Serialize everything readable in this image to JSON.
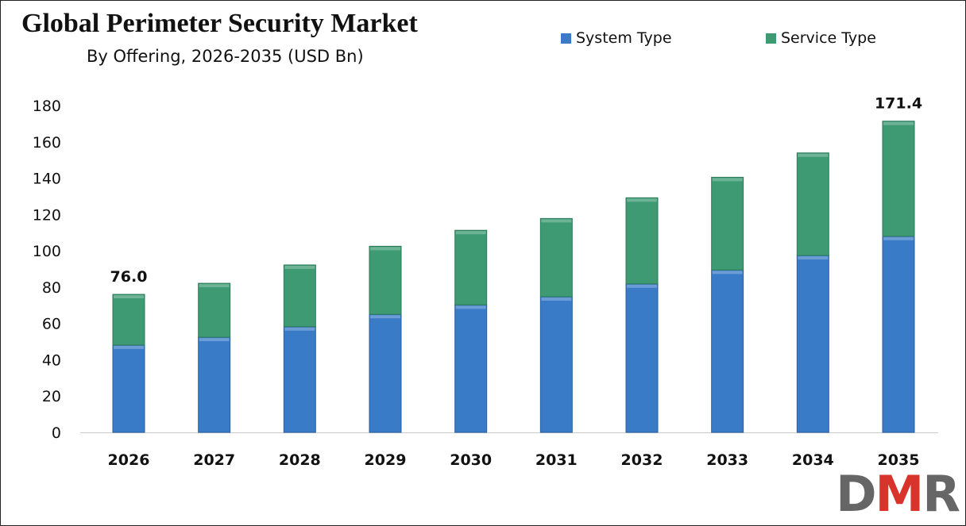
{
  "chart_data": {
    "type": "bar",
    "stacked": true,
    "title": "Global Perimeter Security Market",
    "subtitle": "By Offering, 2026-2035 (USD Bn)",
    "categories": [
      "2026",
      "2027",
      "2028",
      "2029",
      "2030",
      "2031",
      "2032",
      "2033",
      "2034",
      "2035"
    ],
    "series": [
      {
        "name": "System Type",
        "color": "#3a7bc8",
        "values": [
          48.1,
          52.4,
          58.2,
          65.0,
          70.2,
          74.7,
          81.8,
          89.4,
          97.4,
          108.0
        ]
      },
      {
        "name": "Service Type",
        "color": "#3d9a73",
        "values": [
          27.9,
          29.7,
          34.0,
          37.5,
          41.1,
          43.1,
          47.4,
          51.1,
          56.5,
          63.4
        ]
      }
    ],
    "annotations": [
      {
        "category": "2026",
        "label": "76.0"
      },
      {
        "category": "2035",
        "label": "171.4"
      }
    ],
    "ylim": [
      0,
      180
    ],
    "yticks": [
      0,
      20,
      40,
      60,
      80,
      100,
      120,
      140,
      160,
      180
    ],
    "grid": false,
    "legend": "top-right"
  },
  "logo": {
    "text": "DMR",
    "colors": [
      "#666666",
      "#d9342b",
      "#666666"
    ]
  }
}
